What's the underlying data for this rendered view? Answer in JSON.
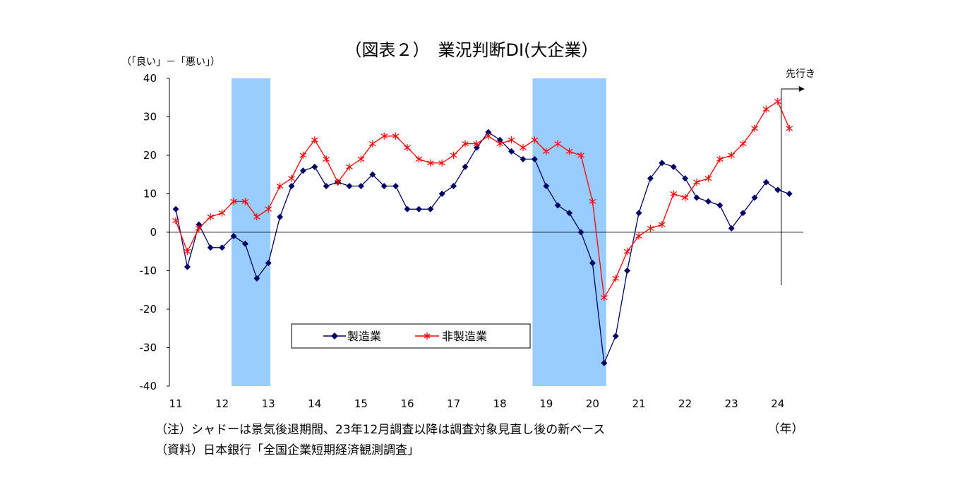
{
  "chart_data": {
    "type": "line",
    "title": "（図表２）　業況判断DI(大企業）",
    "ylabel": "（「良い」－「悪い」）",
    "xlabel": "",
    "ylim": [
      -40,
      40
    ],
    "yticks": [
      40,
      30,
      20,
      10,
      0,
      -10,
      -20,
      -30,
      -40
    ],
    "x_range": [
      2011,
      2025
    ],
    "x_tick_labels": [
      "11",
      "12",
      "13",
      "14",
      "15",
      "16",
      "17",
      "18",
      "19",
      "20",
      "21",
      "22",
      "23",
      "24"
    ],
    "x_unit_label": "（年）",
    "forecast_label": "先行き",
    "recession_shading": [
      [
        2012.25,
        2013.0
      ],
      [
        2018.75,
        2020.25
      ]
    ],
    "legend_position": "bottom-center",
    "grid": false,
    "series": [
      {
        "name": "製造業",
        "color": "#000066",
        "marker": "diamond",
        "x": [
          2011.0,
          2011.25,
          2011.5,
          2011.75,
          2012.0,
          2012.25,
          2012.5,
          2012.75,
          2013.0,
          2013.25,
          2013.5,
          2013.75,
          2014.0,
          2014.25,
          2014.5,
          2014.75,
          2015.0,
          2015.25,
          2015.5,
          2015.75,
          2016.0,
          2016.25,
          2016.5,
          2016.75,
          2017.0,
          2017.25,
          2017.5,
          2017.75,
          2018.0,
          2018.25,
          2018.5,
          2018.75,
          2019.0,
          2019.25,
          2019.5,
          2019.75,
          2020.0,
          2020.25,
          2020.5,
          2020.75,
          2021.0,
          2021.25,
          2021.5,
          2021.75,
          2022.0,
          2022.25,
          2022.5,
          2022.75,
          2023.0,
          2023.25,
          2023.5,
          2023.75,
          2024.0,
          2024.25
        ],
        "values": [
          6,
          -9,
          2,
          -4,
          -4,
          -1,
          -3,
          -12,
          -8,
          4,
          12,
          16,
          17,
          12,
          13,
          12,
          12,
          15,
          12,
          12,
          6,
          6,
          6,
          10,
          12,
          17,
          22,
          26,
          24,
          21,
          19,
          19,
          12,
          7,
          5,
          0,
          -8,
          -34,
          -27,
          -10,
          5,
          14,
          18,
          17,
          14,
          9,
          8,
          7,
          1,
          5,
          9,
          13,
          11,
          10
        ]
      },
      {
        "name": "非製造業",
        "color": "#ff0000",
        "marker": "asterisk",
        "x": [
          2011.0,
          2011.25,
          2011.5,
          2011.75,
          2012.0,
          2012.25,
          2012.5,
          2012.75,
          2013.0,
          2013.25,
          2013.5,
          2013.75,
          2014.0,
          2014.25,
          2014.5,
          2014.75,
          2015.0,
          2015.25,
          2015.5,
          2015.75,
          2016.0,
          2016.25,
          2016.5,
          2016.75,
          2017.0,
          2017.25,
          2017.5,
          2017.75,
          2018.0,
          2018.25,
          2018.5,
          2018.75,
          2019.0,
          2019.25,
          2019.5,
          2019.75,
          2020.0,
          2020.25,
          2020.5,
          2020.75,
          2021.0,
          2021.25,
          2021.5,
          2021.75,
          2022.0,
          2022.25,
          2022.5,
          2022.75,
          2023.0,
          2023.25,
          2023.5,
          2023.75,
          2024.0,
          2024.25
        ],
        "values": [
          3,
          -5,
          1,
          4,
          5,
          8,
          8,
          4,
          6,
          12,
          14,
          20,
          24,
          19,
          13,
          17,
          19,
          23,
          25,
          25,
          22,
          19,
          18,
          18,
          20,
          23,
          23,
          25,
          23,
          24,
          22,
          24,
          21,
          23,
          21,
          20,
          8,
          -17,
          -12,
          -5,
          -1,
          1,
          2,
          10,
          9,
          13,
          14,
          19,
          20,
          23,
          27,
          32,
          34,
          27
        ]
      }
    ]
  },
  "notes": [
    "（注）シャドーは景気後退期間、23年12月調査以降は調査対象見直し後の新ベース",
    "（資料）日本銀行「全国企業短期経済観測調査」"
  ]
}
